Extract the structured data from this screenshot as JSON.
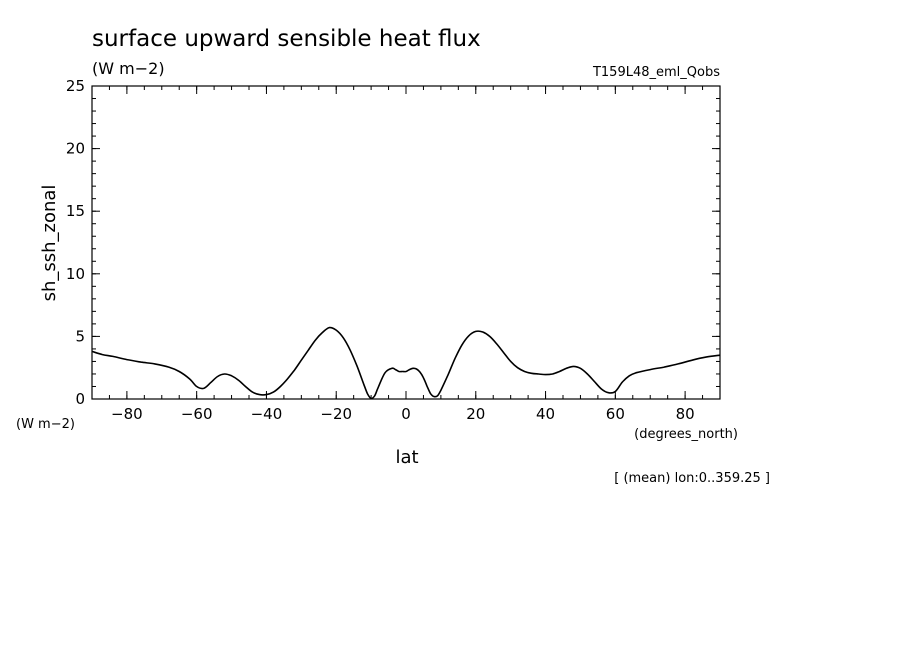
{
  "chart_data": {
    "type": "line",
    "title": "surface upward sensible heat flux",
    "units_label": "(W m−2)",
    "experiment": "T159L48_eml_Qobs",
    "ylabel": "sh_ssh_zonal",
    "y_units": "(W m−2)",
    "xlabel": "lat",
    "x_units": "(degrees_north)",
    "footnote": "[ (mean) lon:0..359.25 ]",
    "xlim": [
      -90,
      90
    ],
    "ylim": [
      0,
      25
    ],
    "xticks": [
      -80,
      -60,
      -40,
      -20,
      0,
      20,
      40,
      60,
      80
    ],
    "xtick_labels": [
      "−80",
      "−60",
      "−40",
      "−20",
      "0",
      "20",
      "40",
      "60",
      "80"
    ],
    "yticks": [
      0,
      5,
      10,
      15,
      20,
      25
    ],
    "ytick_labels": [
      "0",
      "5",
      "10",
      "15",
      "20",
      "25"
    ],
    "grid": false,
    "series": [
      {
        "color": "#000000",
        "x": [
          -90,
          -87,
          -84,
          -80,
          -76,
          -72,
          -68,
          -65,
          -62,
          -60,
          -58,
          -56,
          -54,
          -52,
          -50,
          -48,
          -46,
          -44,
          -42,
          -40,
          -38,
          -36,
          -34,
          -32,
          -30,
          -28,
          -26,
          -24,
          -22,
          -20,
          -18,
          -16,
          -14,
          -12,
          -11,
          -10,
          -9,
          -8,
          -6,
          -4,
          -3,
          -2,
          -1,
          0,
          1,
          2,
          3,
          4,
          5,
          6,
          7,
          8,
          9,
          10,
          12,
          14,
          16,
          18,
          20,
          22,
          24,
          26,
          28,
          30,
          32,
          34,
          36,
          38,
          40,
          42,
          44,
          46,
          48,
          50,
          52,
          54,
          56,
          58,
          60,
          62,
          64,
          66,
          70,
          74,
          78,
          82,
          86,
          90
        ],
        "y": [
          3.8,
          3.55,
          3.4,
          3.15,
          2.95,
          2.8,
          2.55,
          2.2,
          1.6,
          1.0,
          0.85,
          1.3,
          1.8,
          2.0,
          1.85,
          1.5,
          1.0,
          0.55,
          0.35,
          0.35,
          0.55,
          1.0,
          1.6,
          2.3,
          3.1,
          3.9,
          4.7,
          5.3,
          5.7,
          5.5,
          4.9,
          3.9,
          2.6,
          1.1,
          0.4,
          0.05,
          0.25,
          0.9,
          2.1,
          2.45,
          2.35,
          2.2,
          2.2,
          2.2,
          2.35,
          2.45,
          2.4,
          2.15,
          1.7,
          1.05,
          0.45,
          0.2,
          0.25,
          0.7,
          1.9,
          3.2,
          4.3,
          5.05,
          5.4,
          5.35,
          5.0,
          4.4,
          3.7,
          3.0,
          2.5,
          2.2,
          2.05,
          2.0,
          1.95,
          2.0,
          2.2,
          2.45,
          2.6,
          2.45,
          2.0,
          1.4,
          0.8,
          0.5,
          0.6,
          1.35,
          1.85,
          2.1,
          2.35,
          2.55,
          2.8,
          3.1,
          3.35,
          3.5
        ]
      }
    ]
  }
}
